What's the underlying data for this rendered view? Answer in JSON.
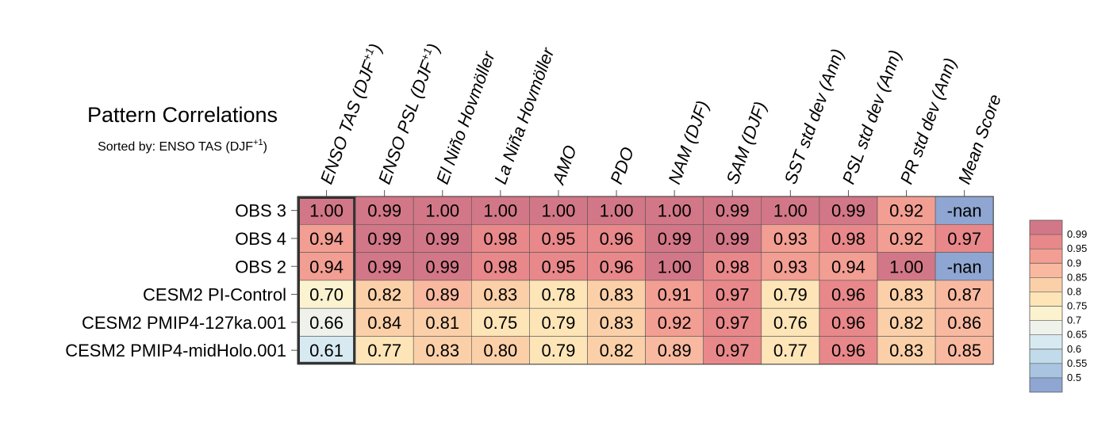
{
  "chart_data": {
    "type": "heatmap",
    "title": "Pattern Correlations",
    "subtitle": "Sorted by: ENSO TAS (DJF+1)",
    "subtitle_prefix": "Sorted by: ENSO TAS (DJF",
    "subtitle_superscript": "+1",
    "subtitle_suffix": ")",
    "columns": [
      {
        "label": "ENSO TAS (DJF+1)",
        "main": "ENSO TAS (DJF",
        "sup": "+1",
        "post": ")"
      },
      {
        "label": "ENSO PSL (DJF+1)",
        "main": "ENSO PSL (DJF",
        "sup": "+1",
        "post": ")"
      },
      {
        "label": "El Niño Hovmöller",
        "main": "El Niño Hovmöller",
        "sup": "",
        "post": ""
      },
      {
        "label": "La Niña Hovmöller",
        "main": "La Niña Hovmöller",
        "sup": "",
        "post": ""
      },
      {
        "label": "AMO",
        "main": "AMO",
        "sup": "",
        "post": ""
      },
      {
        "label": "PDO",
        "main": "PDO",
        "sup": "",
        "post": ""
      },
      {
        "label": "NAM (DJF)",
        "main": "NAM (DJF)",
        "sup": "",
        "post": ""
      },
      {
        "label": "SAM (DJF)",
        "main": "SAM (DJF)",
        "sup": "",
        "post": ""
      },
      {
        "label": "SST std dev (Ann)",
        "main": "SST std dev (Ann)",
        "sup": "",
        "post": ""
      },
      {
        "label": "PSL std dev (Ann)",
        "main": "PSL std dev (Ann)",
        "sup": "",
        "post": ""
      },
      {
        "label": "PR std dev (Ann)",
        "main": "PR std dev (Ann)",
        "sup": "",
        "post": ""
      },
      {
        "label": "Mean Score",
        "main": "Mean Score",
        "sup": "",
        "post": ""
      }
    ],
    "rows": [
      "OBS 3",
      "OBS 4",
      "OBS 2",
      "CESM2 PI-Control",
      "CESM2 PMIP4-127ka.001",
      "CESM2 PMIP4-midHolo.001"
    ],
    "values": [
      [
        "1.00",
        "0.99",
        "1.00",
        "1.00",
        "1.00",
        "1.00",
        "1.00",
        "0.99",
        "1.00",
        "0.99",
        "0.92",
        "-nan"
      ],
      [
        "0.94",
        "0.99",
        "0.99",
        "0.98",
        "0.95",
        "0.96",
        "0.99",
        "0.99",
        "0.93",
        "0.98",
        "0.92",
        "0.97"
      ],
      [
        "0.94",
        "0.99",
        "0.99",
        "0.98",
        "0.95",
        "0.96",
        "1.00",
        "0.98",
        "0.93",
        "0.94",
        "1.00",
        "-nan"
      ],
      [
        "0.70",
        "0.82",
        "0.89",
        "0.83",
        "0.78",
        "0.83",
        "0.91",
        "0.97",
        "0.79",
        "0.96",
        "0.83",
        "0.87"
      ],
      [
        "0.66",
        "0.84",
        "0.81",
        "0.75",
        "0.79",
        "0.83",
        "0.92",
        "0.97",
        "0.76",
        "0.96",
        "0.82",
        "0.86"
      ],
      [
        "0.61",
        "0.77",
        "0.83",
        "0.80",
        "0.79",
        "0.82",
        "0.89",
        "0.97",
        "0.77",
        "0.96",
        "0.83",
        "0.85"
      ]
    ],
    "highlighted_column": 0,
    "colorbar": {
      "labels": [
        "0.99",
        "0.95",
        "0.9",
        "0.85",
        "0.8",
        "0.75",
        "0.7",
        "0.65",
        "0.6",
        "0.55",
        "0.5"
      ],
      "colors": [
        "#d27787",
        "#e8888a",
        "#f29e93",
        "#f8b9a0",
        "#fbd0a8",
        "#fde5b8",
        "#fbf3d0",
        "#eef2eb",
        "#d8eaf1",
        "#c1dbea",
        "#a8c4e0",
        "#8fa6d2"
      ],
      "nan_color": "#8fa6d2"
    }
  }
}
